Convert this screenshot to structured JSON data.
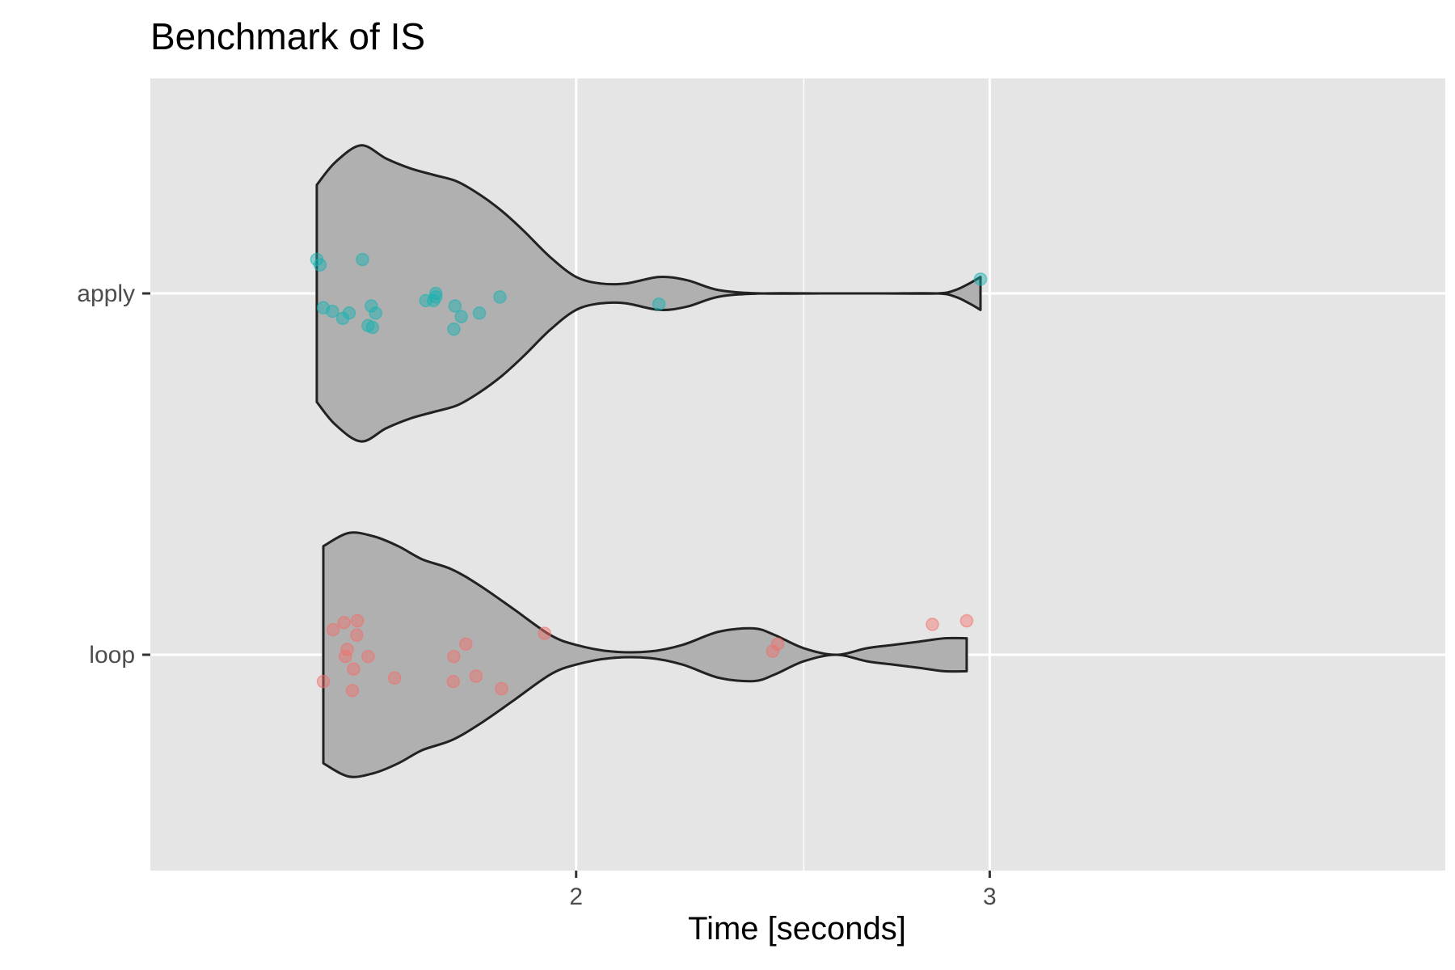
{
  "chart_data": {
    "type": "violin",
    "title": "Benchmark of IS",
    "xlabel": "Time [seconds]",
    "ylabel": "",
    "x_scale": "log10",
    "xlim": [
      1.5,
      3.0
    ],
    "x_ticks": [
      2,
      3
    ],
    "x_tick_labels": [
      "2",
      "3"
    ],
    "x_minor_ticks": [
      2.5
    ],
    "categories": [
      "apply",
      "loop"
    ],
    "grid": true,
    "colors": {
      "panel_bg": "#e5e5e5",
      "grid": "#ffffff",
      "violin_fill": "#b0b0b0",
      "violin_stroke": "#222222",
      "apply": "#19b2b2",
      "loop": "#f0706b"
    },
    "series": [
      {
        "category": "apply",
        "values": [
          1.551,
          1.556,
          1.561,
          1.575,
          1.591,
          1.601,
          1.622,
          1.631,
          1.636,
          1.638,
          1.643,
          1.726,
          1.739,
          1.743,
          1.743,
          1.774,
          1.776,
          1.787,
          1.819,
          1.856,
          2.169,
          2.973
        ],
        "jitter": [
          -0.19,
          -0.16,
          0.08,
          0.1,
          0.14,
          0.11,
          -0.19,
          0.18,
          0.07,
          0.19,
          0.11,
          0.04,
          0.04,
          0.0,
          0.02,
          0.2,
          0.07,
          0.13,
          0.11,
          0.02,
          0.06,
          -0.08
        ]
      },
      {
        "category": "loop",
        "values": [
          1.561,
          1.576,
          1.593,
          1.595,
          1.598,
          1.606,
          1.608,
          1.613,
          1.614,
          1.631,
          1.674,
          1.773,
          1.774,
          1.795,
          1.813,
          1.859,
          1.939,
          2.425,
          2.437,
          2.836,
          2.933
        ],
        "jitter": [
          0.15,
          -0.14,
          -0.18,
          0.01,
          -0.03,
          0.2,
          0.08,
          -0.11,
          -0.19,
          0.01,
          0.13,
          0.15,
          0.01,
          -0.06,
          0.12,
          0.19,
          -0.12,
          -0.02,
          -0.06,
          -0.17,
          -0.19
        ]
      }
    ],
    "violin_density": {
      "apply": {
        "x": [
          1.551,
          1.58,
          1.62,
          1.66,
          1.7,
          1.74,
          1.78,
          1.82,
          1.86,
          1.9,
          1.95,
          2.0,
          2.05,
          2.1,
          2.17,
          2.23,
          2.3,
          2.4,
          2.55,
          2.7,
          2.85,
          2.9,
          2.94,
          2.973
        ],
        "halfwidth": [
          0.33,
          0.4,
          0.45,
          0.41,
          0.38,
          0.36,
          0.34,
          0.3,
          0.25,
          0.19,
          0.11,
          0.05,
          0.03,
          0.03,
          0.05,
          0.04,
          0.01,
          0.0,
          0.0,
          0.0,
          0.0,
          0.01,
          0.03,
          0.05
        ]
      },
      "loop": {
        "x": [
          1.561,
          1.6,
          1.64,
          1.68,
          1.72,
          1.77,
          1.82,
          1.88,
          1.95,
          2.0,
          2.07,
          2.15,
          2.22,
          2.3,
          2.38,
          2.43,
          2.5,
          2.58,
          2.66,
          2.73,
          2.8,
          2.87,
          2.933
        ],
        "halfwidth": [
          0.33,
          0.37,
          0.36,
          0.33,
          0.29,
          0.26,
          0.21,
          0.14,
          0.06,
          0.03,
          0.01,
          0.01,
          0.03,
          0.07,
          0.08,
          0.06,
          0.02,
          0.0,
          0.02,
          0.03,
          0.04,
          0.05,
          0.05
        ]
      }
    }
  }
}
